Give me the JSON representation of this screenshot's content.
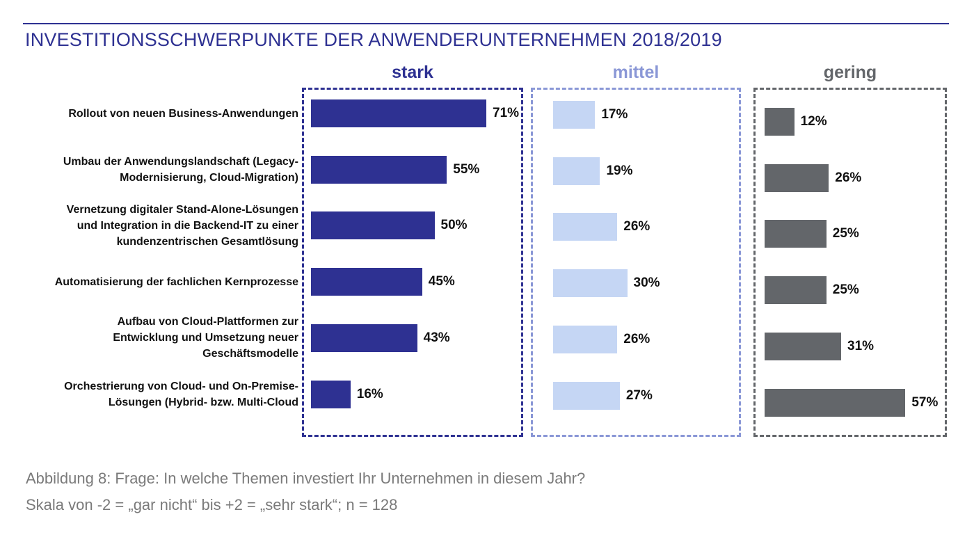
{
  "title": "INVESTITIONSSCHWERPUNKTE DER ANWENDERUNTERNEHMEN 2018/2019",
  "colors": {
    "title": "#2e3192",
    "stark": "#2e3192",
    "mittel": "#c5d6f4",
    "mittel_heading": "#8a97d6",
    "gering": "#63666a"
  },
  "chart_data": {
    "type": "bar",
    "orientation": "horizontal",
    "title": "INVESTITIONSSCHWERPUNKTE DER ANWENDERUNTERNEHMEN 2018/2019",
    "categories": [
      "Rollout von neuen Business-Anwendungen",
      "Umbau der Anwendungslandschaft (Legacy-\nModernisierung, Cloud-Migration)",
      "Vernetzung digitaler Stand-Alone-Lösungen\nund Integration in die Backend-IT zu einer\nkundenzentrischen Gesamtlösung",
      "Automatisierung der fachlichen Kernprozesse",
      "Aufbau von Cloud-Plattformen zur\nEntwicklung und Umsetzung neuer\nGeschäftsmodelle",
      "Orchestrierung von Cloud- und On-Premise-\nLösungen (Hybrid- bzw. Multi-Cloud"
    ],
    "unit": "%",
    "series": [
      {
        "name": "stark",
        "values": [
          71,
          55,
          50,
          45,
          43,
          16
        ]
      },
      {
        "name": "mittel",
        "values": [
          17,
          19,
          26,
          30,
          26,
          27
        ]
      },
      {
        "name": "gering",
        "values": [
          12,
          26,
          25,
          25,
          31,
          57
        ]
      }
    ]
  },
  "caption": {
    "line1": "Abbildung 8: Frage:  In welche Themen investiert Ihr Unternehmen in diesem Jahr?",
    "line2": "Skala von -2 = „gar nicht“ bis +2 = „sehr stark“; n = 128"
  }
}
